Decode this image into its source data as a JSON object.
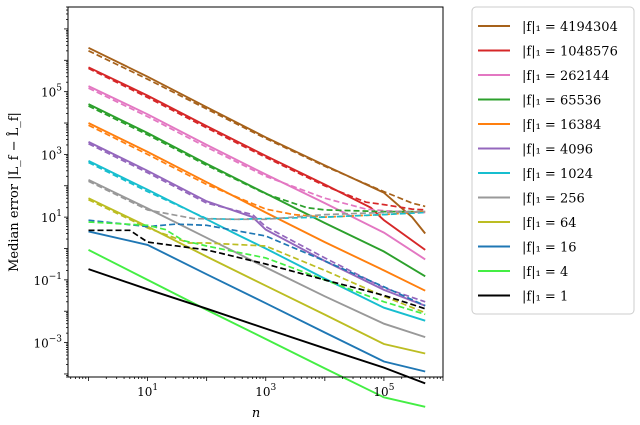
{
  "chart_data": {
    "type": "line",
    "xlabel": "n",
    "ylabel": "Median error |L_f − L̂_f|",
    "xscale": "log",
    "yscale": "log",
    "xlim": [
      0.45,
      1000000
    ],
    "ylim": [
      8e-05,
      50000000
    ],
    "x_ticks": [
      {
        "value": 10,
        "base": "10",
        "exp": "1"
      },
      {
        "value": 1000,
        "base": "10",
        "exp": "3"
      },
      {
        "value": 100000,
        "base": "10",
        "exp": "5"
      }
    ],
    "y_ticks": [
      {
        "value": 0.001,
        "base": "10",
        "exp": "−3"
      },
      {
        "value": 0.1,
        "base": "10",
        "exp": "−1"
      },
      {
        "value": 10,
        "base": "10",
        "exp": "1"
      },
      {
        "value": 1000,
        "base": "10",
        "exp": "3"
      },
      {
        "value": 100000,
        "base": "10",
        "exp": "5"
      }
    ],
    "grid": false,
    "legend_placement": "outside-right",
    "line_styles": {
      "solid": "estimator A",
      "dashed": "estimator B"
    },
    "series": [
      {
        "name": "|f|₁ = 4194304",
        "color": "#a6611a",
        "solid": [
          [
            1,
            2500000
          ],
          [
            10,
            300000
          ],
          [
            100,
            32000
          ],
          [
            1000,
            3500
          ],
          [
            10000,
            450
          ],
          [
            100000,
            60
          ],
          [
            300000,
            10
          ],
          [
            500000,
            3
          ]
        ],
        "dashed": [
          [
            1,
            2000000
          ],
          [
            10,
            250000
          ],
          [
            100,
            28000
          ],
          [
            1000,
            3200
          ],
          [
            10000,
            420
          ],
          [
            100000,
            65
          ],
          [
            300000,
            28
          ],
          [
            500000,
            22
          ]
        ]
      },
      {
        "name": "|f|₁ = 1048576",
        "color": "#d62728",
        "solid": [
          [
            1,
            600000
          ],
          [
            10,
            75000
          ],
          [
            100,
            8000
          ],
          [
            1000,
            900
          ],
          [
            10000,
            110
          ],
          [
            60000,
            20
          ],
          [
            100000,
            8
          ],
          [
            500000,
            0.9
          ]
        ],
        "dashed": [
          [
            1,
            550000
          ],
          [
            10,
            65000
          ],
          [
            100,
            7000
          ],
          [
            1000,
            800
          ],
          [
            10000,
            100
          ],
          [
            50000,
            30
          ],
          [
            100000,
            25
          ],
          [
            300000,
            18
          ],
          [
            500000,
            17
          ]
        ]
      },
      {
        "name": "|f|₁ = 262144",
        "color": "#e377c2",
        "solid": [
          [
            1,
            150000
          ],
          [
            10,
            19000
          ],
          [
            100,
            2000
          ],
          [
            1000,
            230
          ],
          [
            10000,
            28
          ],
          [
            100000,
            3.2
          ],
          [
            500000,
            0.45
          ]
        ],
        "dashed": [
          [
            1,
            130000
          ],
          [
            10,
            16000
          ],
          [
            100,
            1700
          ],
          [
            1000,
            200
          ],
          [
            10000,
            40
          ],
          [
            50000,
            18
          ],
          [
            100000,
            16
          ],
          [
            500000,
            14
          ]
        ]
      },
      {
        "name": "|f|₁ = 65536",
        "color": "#2ca02c",
        "solid": [
          [
            1,
            40000
          ],
          [
            10,
            4800
          ],
          [
            100,
            500
          ],
          [
            1000,
            57
          ],
          [
            10000,
            6.5
          ],
          [
            100000,
            0.8
          ],
          [
            500000,
            0.13
          ]
        ],
        "dashed": [
          [
            1,
            35000
          ],
          [
            10,
            4200
          ],
          [
            100,
            450
          ],
          [
            1000,
            55
          ],
          [
            5000,
            20
          ],
          [
            10000,
            17
          ],
          [
            100000,
            15
          ],
          [
            500000,
            15
          ]
        ]
      },
      {
        "name": "|f|₁ = 16384",
        "color": "#ff7f0e",
        "solid": [
          [
            1,
            10000
          ],
          [
            10,
            1200
          ],
          [
            100,
            130
          ],
          [
            1000,
            14
          ],
          [
            10000,
            1.6
          ],
          [
            100000,
            0.2
          ],
          [
            500000,
            0.045
          ]
        ],
        "dashed": [
          [
            1,
            8500
          ],
          [
            10,
            1000
          ],
          [
            100,
            110
          ],
          [
            1000,
            18
          ],
          [
            3000,
            12
          ],
          [
            10000,
            10
          ],
          [
            100000,
            12
          ],
          [
            500000,
            15
          ]
        ]
      },
      {
        "name": "|f|₁ = 4096",
        "color": "#9467bd",
        "solid": [
          [
            1,
            2500
          ],
          [
            10,
            300
          ],
          [
            100,
            32
          ],
          [
            600,
            10
          ],
          [
            1000,
            4
          ],
          [
            10000,
            0.4
          ],
          [
            100000,
            0.048
          ],
          [
            500000,
            0.015
          ]
        ],
        "dashed": [
          [
            1,
            2200
          ],
          [
            10,
            260
          ],
          [
            100,
            28
          ],
          [
            600,
            12
          ],
          [
            1000,
            5
          ],
          [
            10000,
            0.5
          ],
          [
            100000,
            0.056
          ],
          [
            500000,
            0.02
          ]
        ]
      },
      {
        "name": "|f|₁ = 1024",
        "color": "#17becf",
        "solid": [
          [
            1,
            620
          ],
          [
            10,
            75
          ],
          [
            100,
            8.5
          ],
          [
            300,
            3
          ],
          [
            1000,
            1
          ],
          [
            10000,
            0.11
          ],
          [
            100000,
            0.013
          ],
          [
            500000,
            0.005
          ]
        ],
        "dashed": [
          [
            1,
            550
          ],
          [
            10,
            65
          ],
          [
            100,
            9
          ],
          [
            300,
            8.5
          ],
          [
            1000,
            9
          ],
          [
            10000,
            10
          ],
          [
            100000,
            12
          ],
          [
            500000,
            14
          ]
        ]
      },
      {
        "name": "|f|₁ = 256",
        "color": "#999999",
        "solid": [
          [
            1,
            155
          ],
          [
            10,
            19
          ],
          [
            100,
            2.2
          ],
          [
            1000,
            0.25
          ],
          [
            10000,
            0.03
          ],
          [
            100000,
            0.004
          ],
          [
            500000,
            0.0015
          ]
        ],
        "dashed": [
          [
            1,
            140
          ],
          [
            10,
            17
          ],
          [
            60,
            9
          ],
          [
            300,
            8.5
          ],
          [
            1000,
            8.5
          ],
          [
            3000,
            10
          ],
          [
            10000,
            12
          ],
          [
            100000,
            14
          ],
          [
            500000,
            15
          ]
        ]
      },
      {
        "name": "|f|₁ = 64",
        "color": "#bcbd22",
        "solid": [
          [
            1,
            40
          ],
          [
            10,
            5
          ],
          [
            100,
            0.55
          ],
          [
            1000,
            0.065
          ],
          [
            10000,
            0.0078
          ],
          [
            100000,
            0.0009
          ],
          [
            500000,
            0.00045
          ]
        ],
        "dashed": [
          [
            1,
            36
          ],
          [
            10,
            4.5
          ],
          [
            50,
            1.5
          ],
          [
            100,
            1.5
          ],
          [
            1000,
            1.2
          ],
          [
            10000,
            0.2
          ],
          [
            100000,
            0.03
          ],
          [
            500000,
            0.009
          ]
        ]
      },
      {
        "name": "|f|₁ = 16",
        "color": "#1f77b4",
        "solid": [
          [
            1,
            3.5
          ],
          [
            10,
            1.3
          ],
          [
            100,
            0.15
          ],
          [
            1000,
            0.018
          ],
          [
            10000,
            0.0021
          ],
          [
            100000,
            0.00025
          ],
          [
            500000,
            0.00012
          ]
        ],
        "dashed": [
          [
            1,
            8
          ],
          [
            10,
            5
          ],
          [
            30,
            6
          ],
          [
            100,
            5.5
          ],
          [
            1000,
            2.5
          ],
          [
            10000,
            0.4
          ],
          [
            100000,
            0.06
          ],
          [
            500000,
            0.015
          ]
        ]
      },
      {
        "name": "|f|₁ = 4",
        "color": "#44ee44",
        "solid": [
          [
            1,
            0.9
          ],
          [
            10,
            0.1
          ],
          [
            100,
            0.011
          ],
          [
            1000,
            0.0013
          ],
          [
            10000,
            0.00015
          ],
          [
            100000,
            1.8e-05
          ],
          [
            500000,
            9e-06
          ]
        ],
        "dashed": [
          [
            1,
            7
          ],
          [
            10,
            5.5
          ],
          [
            20,
            4
          ],
          [
            40,
            1.8
          ],
          [
            100,
            1.2
          ],
          [
            1000,
            0.5
          ],
          [
            10000,
            0.1
          ],
          [
            100000,
            0.02
          ],
          [
            500000,
            0.008
          ]
        ]
      },
      {
        "name": "|f|₁ = 1",
        "color": "#000000",
        "solid": [
          [
            1,
            0.22
          ],
          [
            10,
            0.05
          ],
          [
            100,
            0.012
          ],
          [
            1000,
            0.0028
          ],
          [
            10000,
            0.00066
          ],
          [
            100000,
            0.00016
          ],
          [
            500000,
            5e-05
          ]
        ],
        "dashed": [
          [
            1,
            3.8
          ],
          [
            5,
            3.8
          ],
          [
            10,
            1.6
          ],
          [
            100,
            0.9
          ],
          [
            1000,
            0.32
          ],
          [
            10000,
            0.1
          ],
          [
            100000,
            0.032
          ],
          [
            500000,
            0.012
          ]
        ]
      }
    ]
  }
}
